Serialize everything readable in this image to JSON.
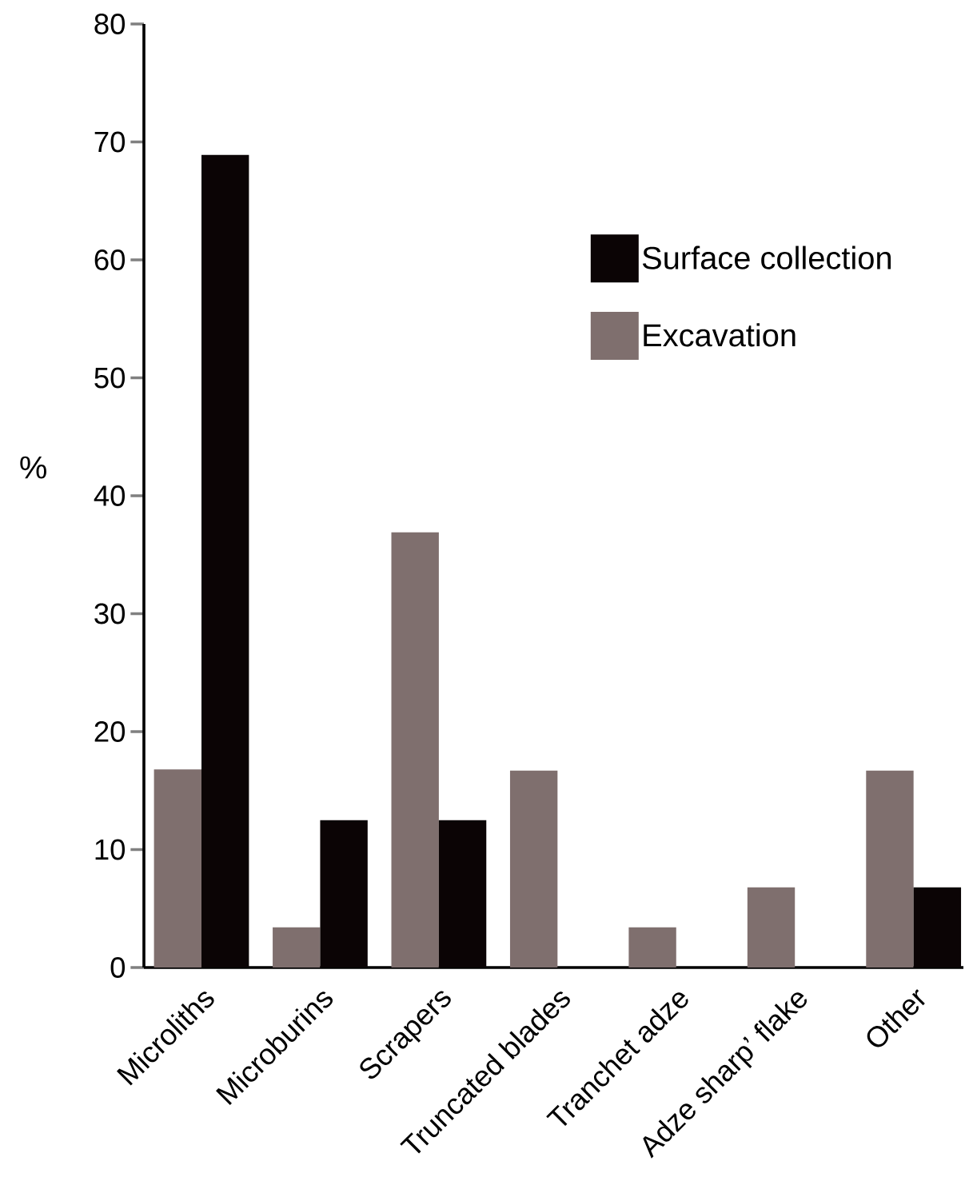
{
  "chart_data": {
    "type": "bar",
    "ylabel": "%",
    "categories": [
      "Microliths",
      "Microburins",
      "Scrapers",
      "Truncated blades",
      "Tranchet adze",
      "Adze sharp’ flake",
      "Other"
    ],
    "series": [
      {
        "name": "Excavation",
        "color": "#7f6f6e",
        "values": [
          16.8,
          3.4,
          36.9,
          16.7,
          3.4,
          6.8,
          16.7
        ]
      },
      {
        "name": "Surface collection",
        "color": "#0b0405",
        "values": [
          68.9,
          12.5,
          12.5,
          null,
          null,
          null,
          6.8
        ]
      }
    ],
    "ylim": [
      0,
      80
    ],
    "yticks": [
      0,
      10,
      20,
      30,
      40,
      50,
      60,
      70,
      80
    ],
    "grid": false,
    "legend": "top right"
  }
}
